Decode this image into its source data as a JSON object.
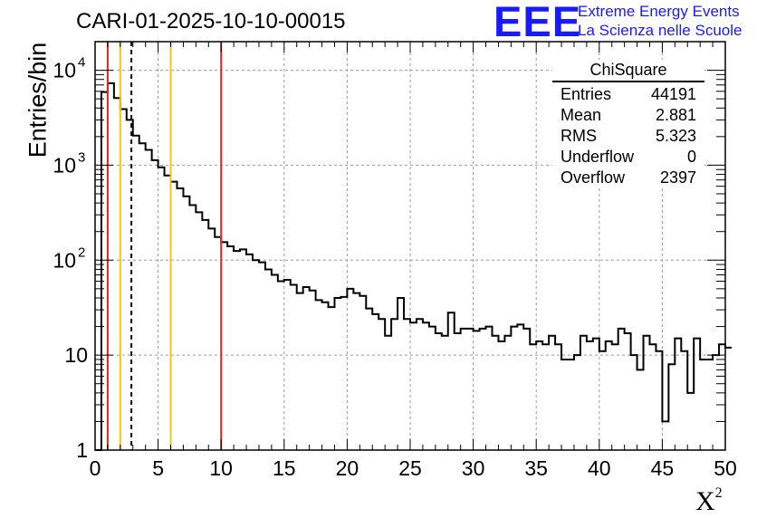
{
  "header": {
    "title": "CARI-01-2025-10-10-00015",
    "logo_mark": "EEE",
    "logo_line1": "Extreme Energy Events",
    "logo_line2": "La Scienza nelle Scuole"
  },
  "stats_box": {
    "title": "ChiSquare",
    "rows": [
      {
        "label": "Entries",
        "value": "44191"
      },
      {
        "label": "Mean",
        "value": "2.881"
      },
      {
        "label": "RMS",
        "value": "5.323"
      },
      {
        "label": "Underflow",
        "value": "0"
      },
      {
        "label": "Overflow",
        "value": "2397"
      }
    ]
  },
  "chart_data": {
    "type": "histogram",
    "title": "CARI-01-2025-10-10-00015",
    "xlabel": "X",
    "xlabel_sup": "2",
    "ylabel": "Entries/bin",
    "yscale": "log",
    "xlim": [
      0,
      50
    ],
    "ylim": [
      1,
      20000
    ],
    "grid": true,
    "bin_width": 0.5,
    "bin_start": 0,
    "x_ticks": [
      "0",
      "5",
      "10",
      "15",
      "20",
      "25",
      "30",
      "35",
      "40",
      "45",
      "50"
    ],
    "y_ticks": [
      {
        "value": 1,
        "base": "1",
        "exp": ""
      },
      {
        "value": 10,
        "base": "10",
        "exp": ""
      },
      {
        "value": 100,
        "base": "10",
        "exp": "2"
      },
      {
        "value": 1000,
        "base": "10",
        "exp": "3"
      },
      {
        "value": 10000,
        "base": "10",
        "exp": "4"
      }
    ],
    "bin_values": [
      0,
      5900,
      7300,
      5100,
      3900,
      3000,
      2050,
      1700,
      1450,
      1130,
      950,
      780,
      670,
      570,
      470,
      380,
      320,
      265,
      215,
      175,
      155,
      140,
      125,
      130,
      115,
      100,
      95,
      80,
      70,
      60,
      62,
      55,
      45,
      52,
      48,
      38,
      36,
      32,
      40,
      41,
      50,
      45,
      42,
      31,
      27,
      24,
      16,
      24,
      40,
      24,
      22,
      24,
      22,
      20,
      17,
      16,
      28,
      17,
      19,
      19,
      18,
      19,
      20,
      16,
      14,
      16,
      20,
      21,
      19,
      13,
      14,
      13,
      16,
      13,
      9,
      9,
      10,
      16,
      14,
      15,
      11,
      14,
      13,
      19,
      17,
      10,
      7,
      16,
      13,
      11,
      2,
      8,
      15,
      11,
      4,
      15,
      9,
      9,
      10,
      13,
      12
    ],
    "vlines": [
      {
        "x": 1,
        "color": "#e8251c",
        "style": "solid"
      },
      {
        "x": 2,
        "color": "#f5c518",
        "style": "solid"
      },
      {
        "x": 2.881,
        "color": "#000000",
        "style": "dashed"
      },
      {
        "x": 6,
        "color": "#f5c518",
        "style": "solid"
      },
      {
        "x": 10,
        "color": "#e8251c",
        "style": "solid"
      }
    ]
  }
}
